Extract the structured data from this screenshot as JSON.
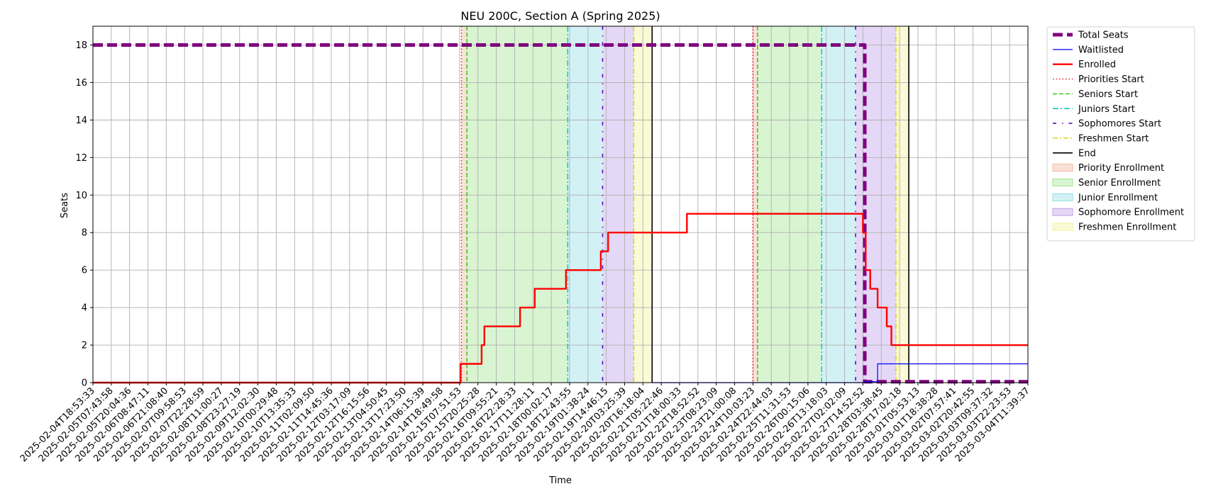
{
  "chart_data": {
    "type": "line",
    "title": "NEU 200C, Section A (Spring 2025)",
    "xlabel": "Time",
    "ylabel": "Seats",
    "ylim": [
      0,
      19
    ],
    "yticks": [
      0,
      2,
      4,
      6,
      8,
      10,
      12,
      14,
      16,
      18
    ],
    "grid": true,
    "legend_position": "outside right, top",
    "x_tick_labels": [
      "2025-02-04T18:53:33",
      "2025-02-05T07:43:58",
      "2025-02-05T20:04:36",
      "2025-02-06T08:47:11",
      "2025-02-06T21:08:40",
      "2025-02-07T09:58:53",
      "2025-02-07T22:28:59",
      "2025-02-08T11:00:27",
      "2025-02-08T23:27:19",
      "2025-02-09T12:02:30",
      "2025-02-10T00:29:48",
      "2025-02-10T13:35:33",
      "2025-02-11T02:09:50",
      "2025-02-11T14:45:36",
      "2025-02-12T03:17:09",
      "2025-02-12T16:15:56",
      "2025-02-13T04:50:45",
      "2025-02-13T17:23:50",
      "2025-02-14T06:15:39",
      "2025-02-14T18:49:58",
      "2025-02-15T07:51:53",
      "2025-02-15T20:25:28",
      "2025-02-16T09:55:21",
      "2025-02-16T22:28:33",
      "2025-02-17T11:28:11",
      "2025-02-18T00:02:17",
      "2025-02-18T12:43:55",
      "2025-02-19T01:38:24",
      "2025-02-19T14:46:15",
      "2025-02-20T03:25:39",
      "2025-02-20T16:18:04",
      "2025-02-21T05:22:46",
      "2025-02-21T18:00:33",
      "2025-02-22T18:52:52",
      "2025-02-23T08:23:09",
      "2025-02-23T21:00:08",
      "2025-02-24T10:03:23",
      "2025-02-24T22:44:03",
      "2025-02-25T11:31:53",
      "2025-02-26T00:15:06",
      "2025-02-26T13:18:03",
      "2025-02-27T02:02:09",
      "2025-02-27T14:52:52",
      "2025-02-28T03:38:45",
      "2025-02-28T17:02:18",
      "2025-03-01T05:53:13",
      "2025-03-01T18:38:28",
      "2025-03-02T07:57:41",
      "2025-03-02T20:42:55",
      "2025-03-03T09:37:32",
      "2025-03-03T22:23:53",
      "2025-03-04T11:39:37"
    ],
    "x_range": [
      0,
      51
    ],
    "legend": [
      {
        "label": "Total Seats",
        "kind": "line",
        "color": "#800080",
        "dash": "14,6",
        "width": 5
      },
      {
        "label": "Waitlisted",
        "kind": "line",
        "color": "#0000ff",
        "dash": "",
        "width": 1.2
      },
      {
        "label": "Enrolled",
        "kind": "line",
        "color": "#ff0000",
        "dash": "",
        "width": 2.4
      },
      {
        "label": "Priorities Start",
        "kind": "line",
        "color": "#ff0000",
        "dash": "1.5,3",
        "width": 1.4
      },
      {
        "label": "Seniors Start",
        "kind": "line",
        "color": "#22cc00",
        "dash": "6,3",
        "width": 1.4
      },
      {
        "label": "Juniors Start",
        "kind": "line",
        "color": "#00c4c4",
        "dash": "8,3,2,3",
        "width": 1.4
      },
      {
        "label": "Sophomores Start",
        "kind": "line",
        "color": "#6600cc",
        "dash": "5,8,1.5,8",
        "width": 1.6
      },
      {
        "label": "Freshmen Start",
        "kind": "line",
        "color": "#d8d000",
        "dash": "7,3,2,3",
        "width": 1.4
      },
      {
        "label": "End",
        "kind": "line",
        "color": "#000000",
        "dash": "",
        "width": 1.6
      },
      {
        "label": "Priority Enrollment",
        "kind": "patch",
        "color": "#f2a98e"
      },
      {
        "label": "Senior Enrollment",
        "kind": "patch",
        "color": "#8fe07a"
      },
      {
        "label": "Junior Enrollment",
        "kind": "patch",
        "color": "#7fd8e0"
      },
      {
        "label": "Sophomore Enrollment",
        "kind": "patch",
        "color": "#b48ee6"
      },
      {
        "label": "Freshmen Enrollment",
        "kind": "patch",
        "color": "#f0f08a"
      }
    ],
    "regions": [
      {
        "name": "Priority Enrollment",
        "from": 20.1,
        "to": 20.4,
        "color": "#f2a98e"
      },
      {
        "name": "Senior Enrollment",
        "from": 20.4,
        "to": 25.9,
        "color": "#8fe07a"
      },
      {
        "name": "Junior Enrollment",
        "from": 25.9,
        "to": 27.8,
        "color": "#7fd8e0"
      },
      {
        "name": "Sophomore Enrollment",
        "from": 27.8,
        "to": 29.5,
        "color": "#b48ee6"
      },
      {
        "name": "Freshmen Enrollment",
        "from": 29.5,
        "to": 30.5,
        "color": "#f0f08a"
      },
      {
        "name": "Priority Enrollment",
        "from": 36.0,
        "to": 36.25,
        "color": "#f2a98e"
      },
      {
        "name": "Senior Enrollment",
        "from": 36.25,
        "to": 39.75,
        "color": "#8fe07a"
      },
      {
        "name": "Junior Enrollment",
        "from": 39.75,
        "to": 41.6,
        "color": "#7fd8e0"
      },
      {
        "name": "Sophomore Enrollment",
        "from": 41.6,
        "to": 43.8,
        "color": "#b48ee6"
      },
      {
        "name": "Freshmen Enrollment",
        "from": 43.8,
        "to": 44.5,
        "color": "#f0f08a"
      }
    ],
    "vlines": [
      {
        "kind": "Priorities Start",
        "x": 20.1
      },
      {
        "kind": "Seniors Start",
        "x": 20.4
      },
      {
        "kind": "Juniors Start",
        "x": 25.9
      },
      {
        "kind": "Sophomores Start",
        "x": 27.8
      },
      {
        "kind": "Freshmen Start",
        "x": 29.5
      },
      {
        "kind": "End",
        "x": 30.5
      },
      {
        "kind": "Priorities Start",
        "x": 36.0
      },
      {
        "kind": "Seniors Start",
        "x": 36.25
      },
      {
        "kind": "Juniors Start",
        "x": 39.75
      },
      {
        "kind": "Sophomores Start",
        "x": 41.6
      },
      {
        "kind": "Freshmen Start",
        "x": 43.8
      },
      {
        "kind": "End",
        "x": 44.5
      }
    ],
    "series": [
      {
        "name": "Total Seats",
        "color": "#800080",
        "points": [
          [
            0,
            18
          ],
          [
            42.1,
            18
          ],
          [
            42.1,
            0.05
          ],
          [
            51,
            0.05
          ]
        ]
      },
      {
        "name": "Waitlisted",
        "color": "#0000ff",
        "points": [
          [
            30.5,
            0
          ],
          [
            42.1,
            0
          ],
          [
            42.1,
            0.05
          ],
          [
            42.8,
            0.05
          ],
          [
            42.8,
            1
          ],
          [
            51,
            1
          ]
        ]
      },
      {
        "name": "Enrolled",
        "color": "#ff0000",
        "points": [
          [
            0,
            0
          ],
          [
            20.05,
            0
          ],
          [
            20.05,
            1
          ],
          [
            21.2,
            1
          ],
          [
            21.2,
            2
          ],
          [
            21.35,
            2
          ],
          [
            21.35,
            3
          ],
          [
            23.3,
            3
          ],
          [
            23.3,
            4
          ],
          [
            24.1,
            4
          ],
          [
            24.1,
            5
          ],
          [
            25.8,
            5
          ],
          [
            25.8,
            6
          ],
          [
            27.7,
            6
          ],
          [
            27.7,
            7
          ],
          [
            28.1,
            7
          ],
          [
            28.1,
            8
          ],
          [
            32.4,
            8
          ],
          [
            32.4,
            9
          ],
          [
            42.0,
            9
          ],
          [
            42.0,
            8
          ],
          [
            42.15,
            8
          ],
          [
            42.15,
            6
          ],
          [
            42.4,
            6
          ],
          [
            42.4,
            5
          ],
          [
            42.8,
            5
          ],
          [
            42.8,
            4
          ],
          [
            43.3,
            4
          ],
          [
            43.3,
            3
          ],
          [
            43.55,
            3
          ],
          [
            43.55,
            2
          ],
          [
            51,
            2
          ]
        ]
      }
    ]
  }
}
